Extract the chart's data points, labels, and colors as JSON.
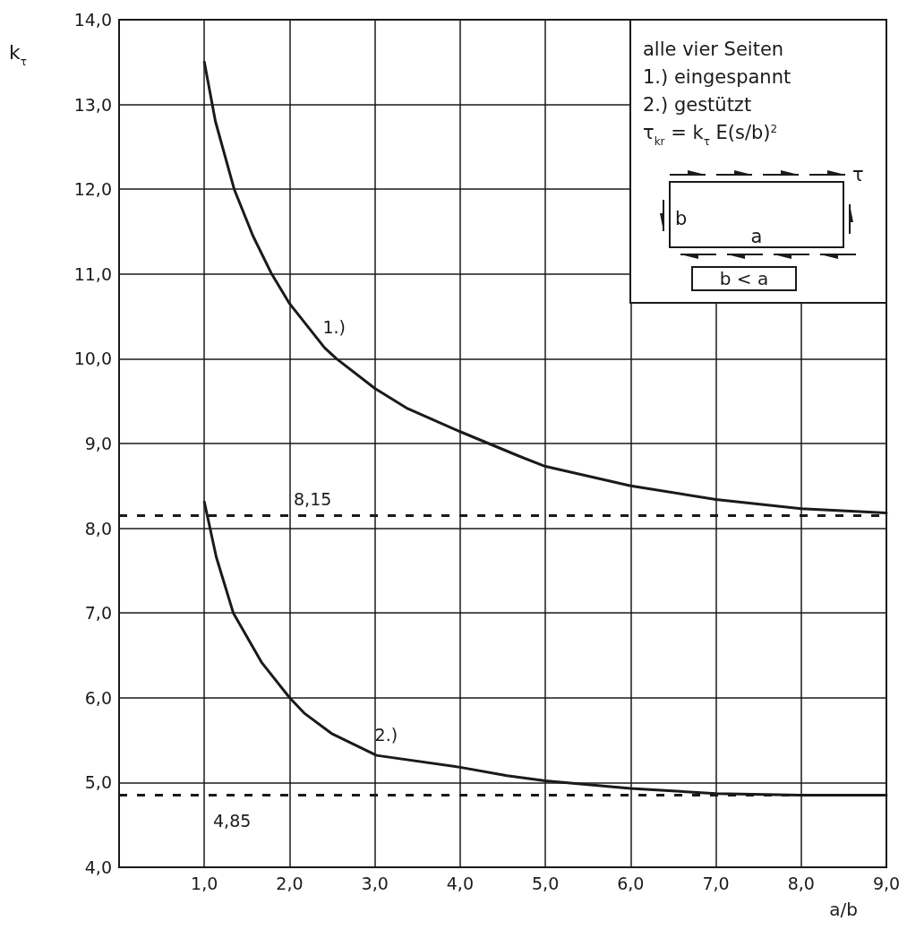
{
  "chart_data": {
    "type": "line",
    "xlabel": "a/b",
    "ylabel": "k$_{τ}$",
    "xlim": [
      0,
      9
    ],
    "xticks": [
      {
        "value": 1,
        "label": "1,0"
      },
      {
        "value": 2,
        "label": "2,0"
      },
      {
        "value": 3,
        "label": "3,0"
      },
      {
        "value": 4,
        "label": "4,0"
      },
      {
        "value": 5,
        "label": "5,0"
      },
      {
        "value": 6,
        "label": "6,0"
      },
      {
        "value": 7,
        "label": "7,0"
      },
      {
        "value": 8,
        "label": "8,0"
      },
      {
        "value": 9,
        "label": "9,0"
      }
    ],
    "ylim": [
      4,
      14
    ],
    "yticks": [
      {
        "value": 4,
        "label": "4,0"
      },
      {
        "value": 5,
        "label": "5,0"
      },
      {
        "value": 6,
        "label": "6,0"
      },
      {
        "value": 7,
        "label": "7,0"
      },
      {
        "value": 8,
        "label": "8,0"
      },
      {
        "value": 9,
        "label": "9,0"
      },
      {
        "value": 10,
        "label": "10,0"
      },
      {
        "value": 11,
        "label": "11,0"
      },
      {
        "value": 12,
        "label": "12,0"
      },
      {
        "value": 13,
        "label": "13,0"
      },
      {
        "value": 14,
        "label": "14,0"
      }
    ],
    "grid": true,
    "marker": "none",
    "line_style": "solid",
    "series": [
      {
        "color": "#1a1a1a",
        "x": [
          1.0,
          1.13,
          1.35,
          1.57,
          1.79,
          2.0,
          2.41,
          2.55,
          3.0,
          3.37,
          4.0,
          4.67,
          5.0,
          6.0,
          7.0,
          8.0,
          9.0
        ],
        "values": [
          13.5,
          12.8,
          12.0,
          11.45,
          11.0,
          10.65,
          10.13,
          10.0,
          9.65,
          9.42,
          9.14,
          8.86,
          8.73,
          8.5,
          8.34,
          8.23,
          8.18
        ]
      },
      {
        "color": "#1a1a1a",
        "x": [
          1.0,
          1.14,
          1.34,
          1.67,
          2.0,
          2.17,
          2.49,
          3.02,
          4.0,
          4.55,
          5.0,
          6.0,
          7.0,
          8.0,
          9.0
        ],
        "values": [
          8.31,
          7.66,
          7.0,
          6.42,
          6.0,
          5.82,
          5.58,
          5.32,
          5.18,
          5.08,
          5.02,
          4.93,
          4.87,
          4.85,
          4.85
        ]
      }
    ],
    "ref_lines": [
      {
        "axis": "y",
        "value": 8.15,
        "label": "8,15",
        "line_style": "dashed",
        "color": "#1a1a1a"
      },
      {
        "axis": "y",
        "value": 4.85,
        "label": "4,85",
        "line_style": "dashed",
        "color": "#1a1a1a"
      }
    ],
    "annotations": [
      {
        "text": "1.)",
        "x": 2.41,
        "y": 10.13
      },
      {
        "text": "2.)",
        "x": 3.02,
        "y": 5.32
      },
      "alle vier Seiten",
      "1.) eingespannt",
      "2.) gestützt",
      "τ$_{kr}$ = k$_{τ}$ E(s/b)$^{2}$",
      "τ",
      "b",
      "a",
      "b < a"
    ]
  }
}
